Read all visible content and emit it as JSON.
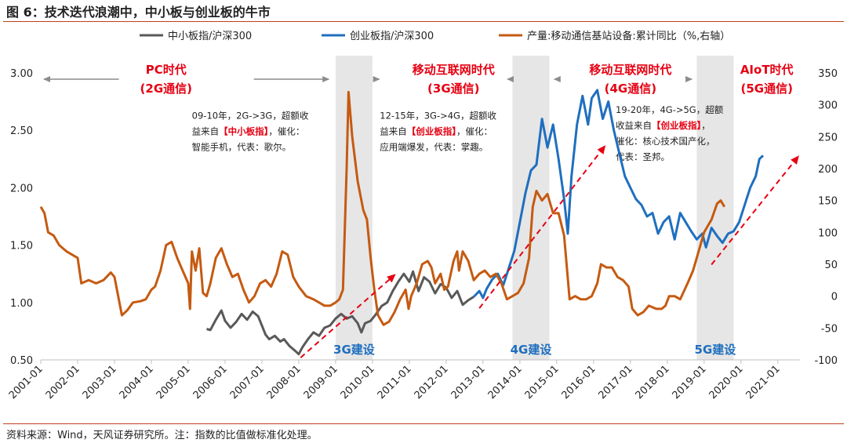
{
  "title": "图 6：技术迭代浪潮中，中小板与创业板的牛市",
  "source": "资料来源：Wind，天风证券研究所。注：指数的比值做标准化处理。",
  "chart_data": {
    "type": "line",
    "x_tick_labels": [
      "2001-01",
      "2002-01",
      "2003-01",
      "2004-01",
      "2005-01",
      "2006-01",
      "2007-01",
      "2008-01",
      "2009-01",
      "2010-01",
      "2011-01",
      "2012-01",
      "2013-01",
      "2014-01",
      "2015-01",
      "2016-01",
      "2017-01",
      "2018-01",
      "2019-01",
      "2020-01",
      "2021-01"
    ],
    "x_range": [
      2001.0,
      2021.6
    ],
    "y_left": {
      "range": [
        0.5,
        3.0
      ],
      "ticks": [
        "0.50",
        "1.00",
        "1.50",
        "2.00",
        "2.50",
        "3.00"
      ]
    },
    "y_right": {
      "range": [
        -100,
        350
      ],
      "ticks": [
        "-100",
        "-50",
        "0",
        "50",
        "100",
        "150",
        "200",
        "250",
        "300",
        "350"
      ]
    },
    "legend": {
      "placement": "top",
      "entries": [
        "中小板指/沪深300",
        "创业板指/沪深300",
        "产量:移动通信基站设备:累计同比（%,右轴）"
      ]
    },
    "series": [
      {
        "name": "中小板指/沪深300",
        "axis": "left",
        "color": "#595959",
        "points": [
          [
            2005.5,
            0.77
          ],
          [
            2005.6,
            0.76
          ],
          [
            2005.75,
            0.85
          ],
          [
            2005.9,
            0.93
          ],
          [
            2006.0,
            0.84
          ],
          [
            2006.15,
            0.78
          ],
          [
            2006.3,
            0.83
          ],
          [
            2006.45,
            0.9
          ],
          [
            2006.6,
            0.85
          ],
          [
            2006.75,
            0.92
          ],
          [
            2006.9,
            0.88
          ],
          [
            2007.0,
            0.8
          ],
          [
            2007.1,
            0.72
          ],
          [
            2007.2,
            0.68
          ],
          [
            2007.35,
            0.71
          ],
          [
            2007.5,
            0.66
          ],
          [
            2007.6,
            0.68
          ],
          [
            2007.75,
            0.62
          ],
          [
            2007.9,
            0.58
          ],
          [
            2008.0,
            0.55
          ],
          [
            2008.1,
            0.61
          ],
          [
            2008.25,
            0.68
          ],
          [
            2008.4,
            0.74
          ],
          [
            2008.55,
            0.71
          ],
          [
            2008.7,
            0.78
          ],
          [
            2008.85,
            0.8
          ],
          [
            2009.0,
            0.86
          ],
          [
            2009.15,
            0.9
          ],
          [
            2009.3,
            0.86
          ],
          [
            2009.45,
            0.88
          ],
          [
            2009.6,
            0.82
          ],
          [
            2009.7,
            0.74
          ],
          [
            2009.8,
            0.82
          ],
          [
            2009.95,
            0.84
          ],
          [
            2010.1,
            0.9
          ],
          [
            2010.25,
            0.97
          ],
          [
            2010.4,
            1.0
          ],
          [
            2010.55,
            1.1
          ],
          [
            2010.7,
            1.18
          ],
          [
            2010.85,
            1.25
          ],
          [
            2011.0,
            1.18
          ],
          [
            2011.1,
            1.27
          ],
          [
            2011.25,
            1.1
          ],
          [
            2011.4,
            1.22
          ],
          [
            2011.55,
            1.18
          ],
          [
            2011.7,
            1.08
          ],
          [
            2011.85,
            1.16
          ],
          [
            2012.0,
            1.13
          ],
          [
            2012.15,
            1.04
          ],
          [
            2012.3,
            1.1
          ],
          [
            2012.45,
            0.98
          ],
          [
            2012.6,
            1.02
          ],
          [
            2012.75,
            1.05
          ]
        ]
      },
      {
        "name": "创业板指/沪深300",
        "axis": "left",
        "color": "#1f6fbf",
        "points": [
          [
            2012.75,
            1.05
          ],
          [
            2012.9,
            1.1
          ],
          [
            2013.0,
            1.04
          ],
          [
            2013.1,
            1.12
          ],
          [
            2013.25,
            1.2
          ],
          [
            2013.4,
            1.25
          ],
          [
            2013.55,
            1.15
          ],
          [
            2013.7,
            1.3
          ],
          [
            2013.85,
            1.45
          ],
          [
            2014.0,
            1.7
          ],
          [
            2014.15,
            1.95
          ],
          [
            2014.3,
            2.15
          ],
          [
            2014.45,
            2.2
          ],
          [
            2014.6,
            2.6
          ],
          [
            2014.75,
            2.35
          ],
          [
            2014.9,
            2.55
          ],
          [
            2015.05,
            2.25
          ],
          [
            2015.2,
            1.9
          ],
          [
            2015.3,
            1.6
          ],
          [
            2015.4,
            2.1
          ],
          [
            2015.55,
            2.55
          ],
          [
            2015.7,
            2.8
          ],
          [
            2015.85,
            2.55
          ],
          [
            2015.95,
            2.78
          ],
          [
            2016.1,
            2.85
          ],
          [
            2016.25,
            2.6
          ],
          [
            2016.4,
            2.75
          ],
          [
            2016.55,
            2.5
          ],
          [
            2016.7,
            2.3
          ],
          [
            2016.85,
            2.1
          ],
          [
            2017.0,
            2.0
          ],
          [
            2017.15,
            1.9
          ],
          [
            2017.3,
            1.85
          ],
          [
            2017.45,
            1.75
          ],
          [
            2017.6,
            1.78
          ],
          [
            2017.75,
            1.6
          ],
          [
            2017.9,
            1.7
          ],
          [
            2018.05,
            1.75
          ],
          [
            2018.2,
            1.55
          ],
          [
            2018.35,
            1.78
          ],
          [
            2018.5,
            1.7
          ],
          [
            2018.65,
            1.62
          ],
          [
            2018.8,
            1.55
          ],
          [
            2018.95,
            1.6
          ],
          [
            2019.05,
            1.48
          ],
          [
            2019.2,
            1.65
          ],
          [
            2019.35,
            1.58
          ],
          [
            2019.5,
            1.52
          ],
          [
            2019.65,
            1.6
          ],
          [
            2019.8,
            1.62
          ],
          [
            2019.95,
            1.7
          ],
          [
            2020.1,
            1.85
          ],
          [
            2020.25,
            2.0
          ],
          [
            2020.4,
            2.1
          ],
          [
            2020.5,
            2.25
          ],
          [
            2020.6,
            2.28
          ]
        ]
      },
      {
        "name": "产量:移动通信基站设备:累计同比（%,右轴）",
        "axis": "right",
        "color": "#c55a11",
        "points": [
          [
            2001.0,
            140
          ],
          [
            2001.1,
            130
          ],
          [
            2001.2,
            100
          ],
          [
            2001.35,
            95
          ],
          [
            2001.5,
            80
          ],
          [
            2001.7,
            70
          ],
          [
            2001.85,
            65
          ],
          [
            2002.0,
            60
          ],
          [
            2002.1,
            20
          ],
          [
            2002.3,
            25
          ],
          [
            2002.5,
            20
          ],
          [
            2002.7,
            25
          ],
          [
            2002.9,
            37
          ],
          [
            2003.0,
            30
          ],
          [
            2003.1,
            0
          ],
          [
            2003.2,
            -30
          ],
          [
            2003.35,
            -22
          ],
          [
            2003.5,
            -10
          ],
          [
            2003.7,
            -8
          ],
          [
            2003.85,
            -5
          ],
          [
            2004.0,
            10
          ],
          [
            2004.1,
            15
          ],
          [
            2004.25,
            40
          ],
          [
            2004.4,
            80
          ],
          [
            2004.55,
            85
          ],
          [
            2004.7,
            60
          ],
          [
            2004.85,
            40
          ],
          [
            2005.0,
            20
          ],
          [
            2005.05,
            -20
          ],
          [
            2005.1,
            70
          ],
          [
            2005.2,
            40
          ],
          [
            2005.3,
            75
          ],
          [
            2005.4,
            5
          ],
          [
            2005.5,
            0
          ],
          [
            2005.6,
            20
          ],
          [
            2005.75,
            60
          ],
          [
            2005.9,
            75
          ],
          [
            2006.05,
            50
          ],
          [
            2006.2,
            30
          ],
          [
            2006.35,
            35
          ],
          [
            2006.5,
            10
          ],
          [
            2006.65,
            -10
          ],
          [
            2006.8,
            0
          ],
          [
            2006.95,
            20
          ],
          [
            2007.1,
            25
          ],
          [
            2007.25,
            15
          ],
          [
            2007.4,
            35
          ],
          [
            2007.55,
            70
          ],
          [
            2007.7,
            65
          ],
          [
            2007.85,
            30
          ],
          [
            2008.0,
            15
          ],
          [
            2008.2,
            0
          ],
          [
            2008.4,
            -5
          ],
          [
            2008.55,
            -10
          ],
          [
            2008.7,
            -15
          ],
          [
            2008.85,
            -15
          ],
          [
            2009.0,
            -10
          ],
          [
            2009.1,
            -5
          ],
          [
            2009.2,
            10
          ],
          [
            2009.3,
            200
          ],
          [
            2009.35,
            320
          ],
          [
            2009.45,
            250
          ],
          [
            2009.6,
            180
          ],
          [
            2009.75,
            135
          ],
          [
            2009.85,
            120
          ],
          [
            2009.95,
            60
          ],
          [
            2010.05,
            10
          ],
          [
            2010.15,
            -30
          ],
          [
            2010.3,
            -45
          ],
          [
            2010.45,
            -40
          ],
          [
            2010.6,
            -25
          ],
          [
            2010.75,
            -5
          ],
          [
            2010.9,
            10
          ],
          [
            2010.98,
            -20
          ],
          [
            2011.05,
            0
          ],
          [
            2011.2,
            20
          ],
          [
            2011.35,
            50
          ],
          [
            2011.5,
            55
          ],
          [
            2011.6,
            45
          ],
          [
            2011.7,
            20
          ],
          [
            2011.85,
            35
          ],
          [
            2011.95,
            10
          ],
          [
            2012.05,
            15
          ],
          [
            2012.2,
            55
          ],
          [
            2012.3,
            70
          ],
          [
            2012.35,
            40
          ],
          [
            2012.45,
            70
          ],
          [
            2012.6,
            55
          ],
          [
            2012.75,
            25
          ],
          [
            2012.9,
            35
          ],
          [
            2013.05,
            40
          ],
          [
            2013.2,
            30
          ],
          [
            2013.35,
            35
          ],
          [
            2013.5,
            20
          ],
          [
            2013.65,
            -5
          ],
          [
            2013.8,
            0
          ],
          [
            2013.95,
            5
          ],
          [
            2014.1,
            20
          ],
          [
            2014.25,
            60
          ],
          [
            2014.35,
            140
          ],
          [
            2014.45,
            165
          ],
          [
            2014.6,
            150
          ],
          [
            2014.75,
            160
          ],
          [
            2014.9,
            130
          ],
          [
            2015.05,
            130
          ],
          [
            2015.2,
            95
          ],
          [
            2015.35,
            -5
          ],
          [
            2015.5,
            0
          ],
          [
            2015.65,
            -5
          ],
          [
            2015.8,
            -5
          ],
          [
            2015.95,
            0
          ],
          [
            2016.1,
            20
          ],
          [
            2016.2,
            50
          ],
          [
            2016.35,
            45
          ],
          [
            2016.5,
            45
          ],
          [
            2016.65,
            30
          ],
          [
            2016.8,
            25
          ],
          [
            2016.95,
            15
          ],
          [
            2017.05,
            -20
          ],
          [
            2017.2,
            -30
          ],
          [
            2017.35,
            -25
          ],
          [
            2017.5,
            -15
          ],
          [
            2017.7,
            -20
          ],
          [
            2017.85,
            -20
          ],
          [
            2017.95,
            -15
          ],
          [
            2018.05,
            0
          ],
          [
            2018.2,
            0
          ],
          [
            2018.35,
            -5
          ],
          [
            2018.55,
            20
          ],
          [
            2018.7,
            40
          ],
          [
            2018.85,
            70
          ],
          [
            2019.0,
            100
          ],
          [
            2019.2,
            120
          ],
          [
            2019.35,
            145
          ],
          [
            2019.45,
            150
          ],
          [
            2019.55,
            140
          ]
        ]
      }
    ],
    "shaded_periods": [
      [
        2009.0,
        2010.0
      ],
      [
        2013.8,
        2014.8
      ],
      [
        2018.8,
        2019.8
      ]
    ],
    "shaded_labels": [
      "3G建设",
      "4G建设",
      "5G建设"
    ],
    "era_labels": [
      {
        "lines": [
          "PC时代",
          "(2G通信)"
        ],
        "center": 2004.4
      },
      {
        "lines": [
          "移动互联网时代",
          "(3G通信)"
        ],
        "center": 2012.2
      },
      {
        "lines": [
          "移动互联网时代",
          "(4G通信)"
        ],
        "center": 2017.0
      },
      {
        "lines": [
          "AIoT时代",
          "(5G通信)"
        ],
        "center": 2020.7
      }
    ],
    "era_arrows": [
      [
        2001.0,
        2008.9
      ],
      [
        2010.1,
        2013.75
      ],
      [
        2014.85,
        2018.75
      ]
    ],
    "annotations": [
      {
        "lines": [
          [
            "09-10年，2G->3G，超额收",
            false
          ],
          [
            "益来自",
            false
          ],
          [
            "【中小板指】",
            true
          ],
          [
            "，催化：",
            false
          ]
        ],
        "x": 2005.1,
        "y": 2.6,
        "extra": [
          "智能手机，代表：歌尔。"
        ]
      },
      {
        "lines": [
          [
            "12-15年，3G->4G，超额收",
            false
          ],
          [
            "益来自",
            false
          ],
          [
            "【创业板指】",
            true
          ],
          [
            "，催化：",
            false
          ]
        ],
        "x": 2010.2,
        "y": 2.6,
        "extra": [
          "应用端爆发，代表：掌趣。"
        ]
      },
      {
        "lines": [
          [
            "19-20年，4G->5G，超额",
            false
          ],
          [
            "收益来自",
            false
          ],
          [
            "【创业板指】",
            true
          ],
          [
            "，",
            false
          ]
        ],
        "x": 2016.6,
        "y": 2.65,
        "extra": [
          "催化：核心技术国产化，",
          "代表：圣邦。"
        ]
      }
    ],
    "trend_arrows": [
      [
        [
          2008.05,
          0.52
        ],
        [
          2010.6,
          1.24
        ]
      ],
      [
        [
          2012.9,
          0.95
        ],
        [
          2016.3,
          2.36
        ]
      ],
      [
        [
          2019.2,
          1.33
        ],
        [
          2021.55,
          2.27
        ]
      ]
    ]
  }
}
